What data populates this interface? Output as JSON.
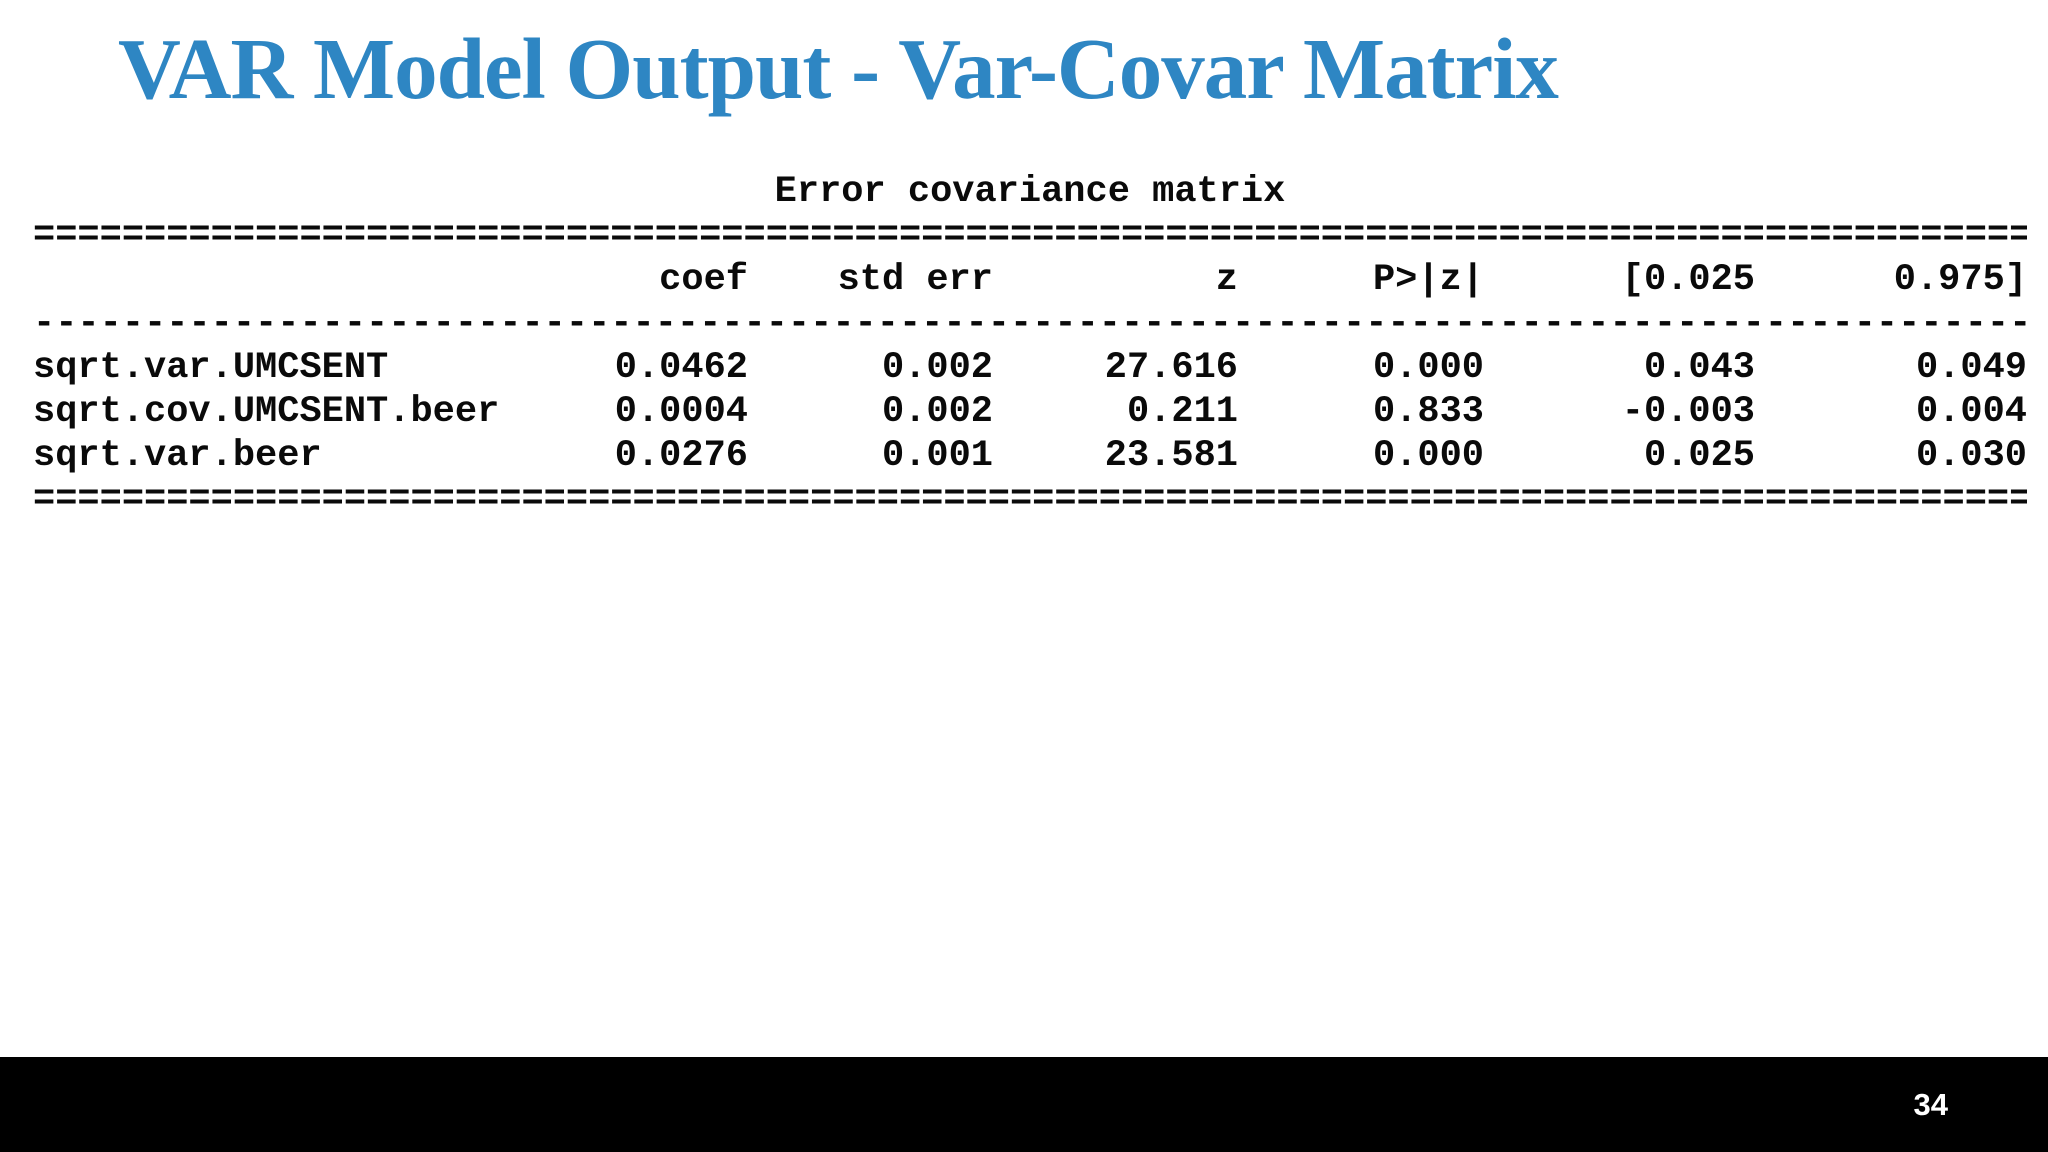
{
  "slide": {
    "title": "VAR Model Output - Var-Covar Matrix",
    "page_number": "34"
  },
  "table": {
    "caption": "Error covariance matrix",
    "rule_double": "==========================================================================================",
    "rule_dashed": "------------------------------------------------------------------------------------------",
    "headers": [
      "coef",
      "std err",
      "z",
      "P>|z|",
      "[0.025",
      "0.975]"
    ],
    "rows": [
      [
        "sqrt.var.UMCSENT",
        "0.0462",
        "0.002",
        "27.616",
        "0.000",
        "0.043",
        "0.049"
      ],
      [
        "sqrt.cov.UMCSENT.beer",
        "0.0004",
        "0.002",
        "0.211",
        "0.833",
        "-0.003",
        "0.004"
      ],
      [
        "sqrt.var.beer",
        "0.0276",
        "0.001",
        "23.581",
        "0.000",
        "0.025",
        "0.030"
      ]
    ]
  },
  "colors": {
    "title_text": "#2e86c3",
    "table_text": "#0a0a0a",
    "footer_bg": "#000000",
    "page_number_text": "#ffffff"
  }
}
